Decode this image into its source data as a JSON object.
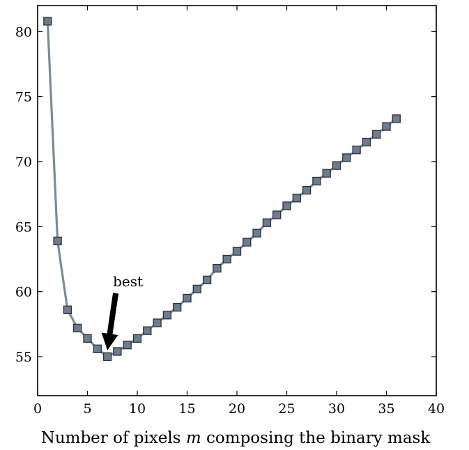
{
  "chart_data": {
    "type": "line",
    "title": "",
    "xlabel": "Number of pixels m composing the binary mask",
    "xlabel_parts": {
      "before": "Number of pixels ",
      "variable": "m",
      "after": " composing the binary mask"
    },
    "ylabel": "",
    "xlim": [
      0,
      40
    ],
    "ylim": [
      52,
      82
    ],
    "xticks": [
      0,
      5,
      10,
      15,
      20,
      25,
      30,
      35,
      40
    ],
    "yticks": [
      55,
      60,
      65,
      70,
      75,
      80
    ],
    "grid": false,
    "legend": "none",
    "marker": "square",
    "series": [
      {
        "x": [
          1,
          2,
          3,
          4,
          5,
          6,
          7,
          8,
          9,
          10,
          11,
          12,
          13,
          14,
          15,
          16,
          17,
          18,
          19,
          20,
          21,
          22,
          23,
          24,
          25,
          26,
          27,
          28,
          29,
          30,
          31,
          32,
          33,
          34,
          35,
          36
        ],
        "y": [
          80.8,
          63.9,
          58.6,
          57.2,
          56.4,
          55.6,
          55.0,
          55.4,
          55.9,
          56.4,
          57.0,
          57.6,
          58.2,
          58.8,
          59.5,
          60.2,
          60.9,
          61.8,
          62.5,
          63.1,
          63.8,
          64.5,
          65.3,
          65.9,
          66.6,
          67.2,
          67.8,
          68.5,
          69.1,
          69.7,
          70.3,
          70.9,
          71.5,
          72.1,
          72.7,
          73.3
        ]
      }
    ],
    "annotations": [
      {
        "text": "best",
        "x": 7,
        "y": 55.0
      }
    ]
  },
  "colors": {
    "line": "#7d8a99",
    "marker_fill": "#6e7c8e",
    "marker_edge": "#2b2f36",
    "arrow": "#000000",
    "axes": "#000000",
    "background": "#ffffff"
  }
}
